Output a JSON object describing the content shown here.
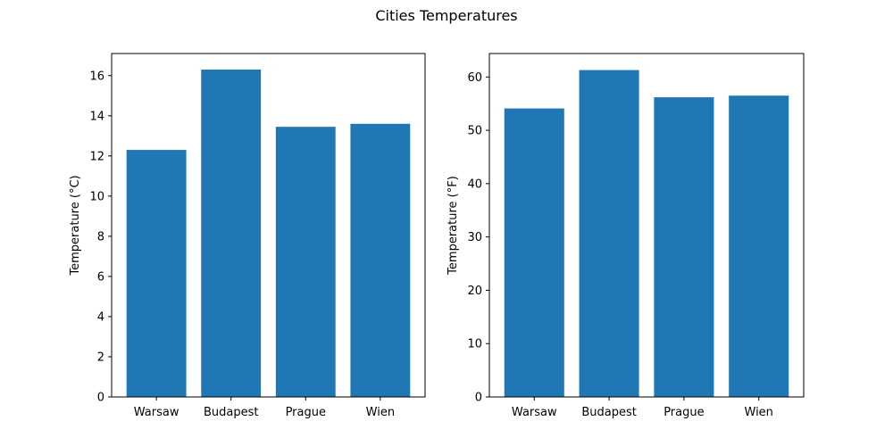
{
  "figure": {
    "title": "Cities Temperatures"
  },
  "chart_data": [
    {
      "type": "bar",
      "categories": [
        "Warsaw",
        "Budapest",
        "Prague",
        "Wien"
      ],
      "values": [
        12.3,
        16.3,
        13.45,
        13.6
      ],
      "xlabel": "",
      "ylabel": "Temperature (°C)",
      "ylim": [
        0,
        17.1
      ],
      "yticks": [
        0,
        2,
        4,
        6,
        8,
        10,
        12,
        14,
        16
      ],
      "bar_color": "#1f77b4",
      "grid": false
    },
    {
      "type": "bar",
      "categories": [
        "Warsaw",
        "Budapest",
        "Prague",
        "Wien"
      ],
      "values": [
        54.1,
        61.3,
        56.2,
        56.5
      ],
      "xlabel": "",
      "ylabel": "Temperature (°F)",
      "ylim": [
        0,
        64.4
      ],
      "yticks": [
        0,
        10,
        20,
        30,
        40,
        50,
        60
      ],
      "bar_color": "#1f77b4",
      "grid": false
    }
  ]
}
